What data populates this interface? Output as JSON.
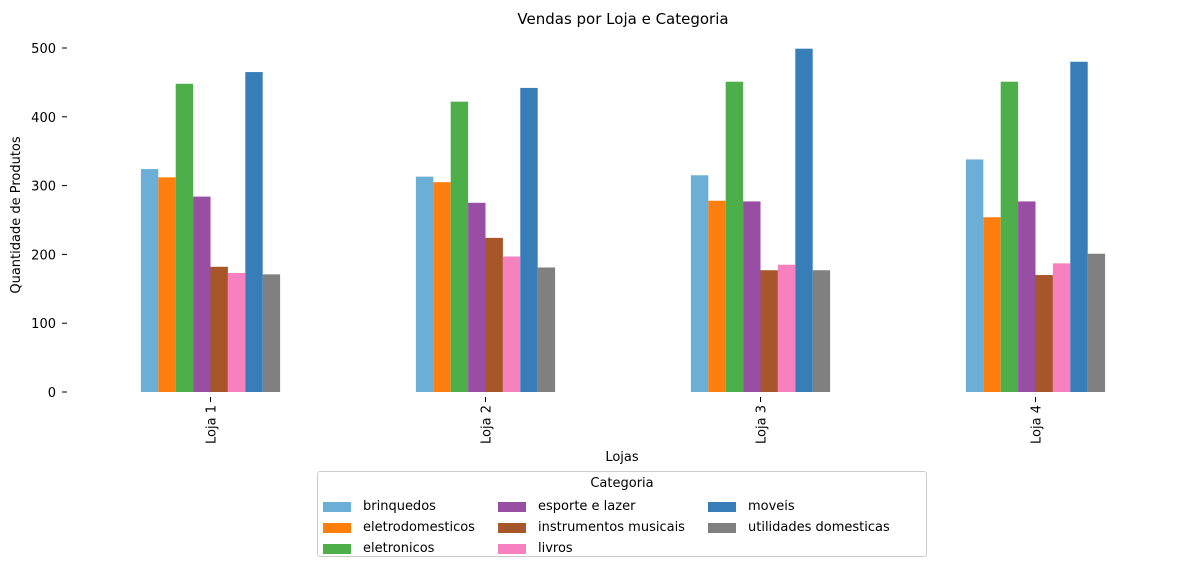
{
  "chart_data": {
    "type": "bar",
    "title": "Vendas por Loja e Categoria",
    "xlabel": "Lojas",
    "ylabel": "Quantidade de Produtos",
    "ylim": [
      0,
      500
    ],
    "yticks": [
      "0",
      "100",
      "200",
      "300",
      "400",
      "500"
    ],
    "categories": [
      "Loja 1",
      "Loja 2",
      "Loja 3",
      "Loja 4"
    ],
    "legend_title": "Categoria",
    "legend_placement": "bottom-center",
    "grid": false,
    "series": [
      {
        "name": "brinquedos",
        "color": "#6baed6",
        "values": [
          324,
          313,
          315,
          338
        ]
      },
      {
        "name": "eletrodomesticos",
        "color": "#ff7f0e",
        "values": [
          312,
          305,
          278,
          254
        ]
      },
      {
        "name": "eletronicos",
        "color": "#4daf4a",
        "values": [
          448,
          422,
          451,
          451
        ]
      },
      {
        "name": "esporte e lazer",
        "color": "#984ea3",
        "values": [
          284,
          275,
          277,
          277
        ]
      },
      {
        "name": "instrumentos musicais",
        "color": "#a65628",
        "values": [
          182,
          224,
          177,
          170
        ]
      },
      {
        "name": "livros",
        "color": "#f781bf",
        "values": [
          173,
          197,
          185,
          187
        ]
      },
      {
        "name": "moveis",
        "color": "#377eb8",
        "values": [
          465,
          442,
          499,
          480
        ]
      },
      {
        "name": "utilidades domesticas",
        "color": "#808080",
        "values": [
          171,
          181,
          177,
          201
        ]
      }
    ]
  }
}
